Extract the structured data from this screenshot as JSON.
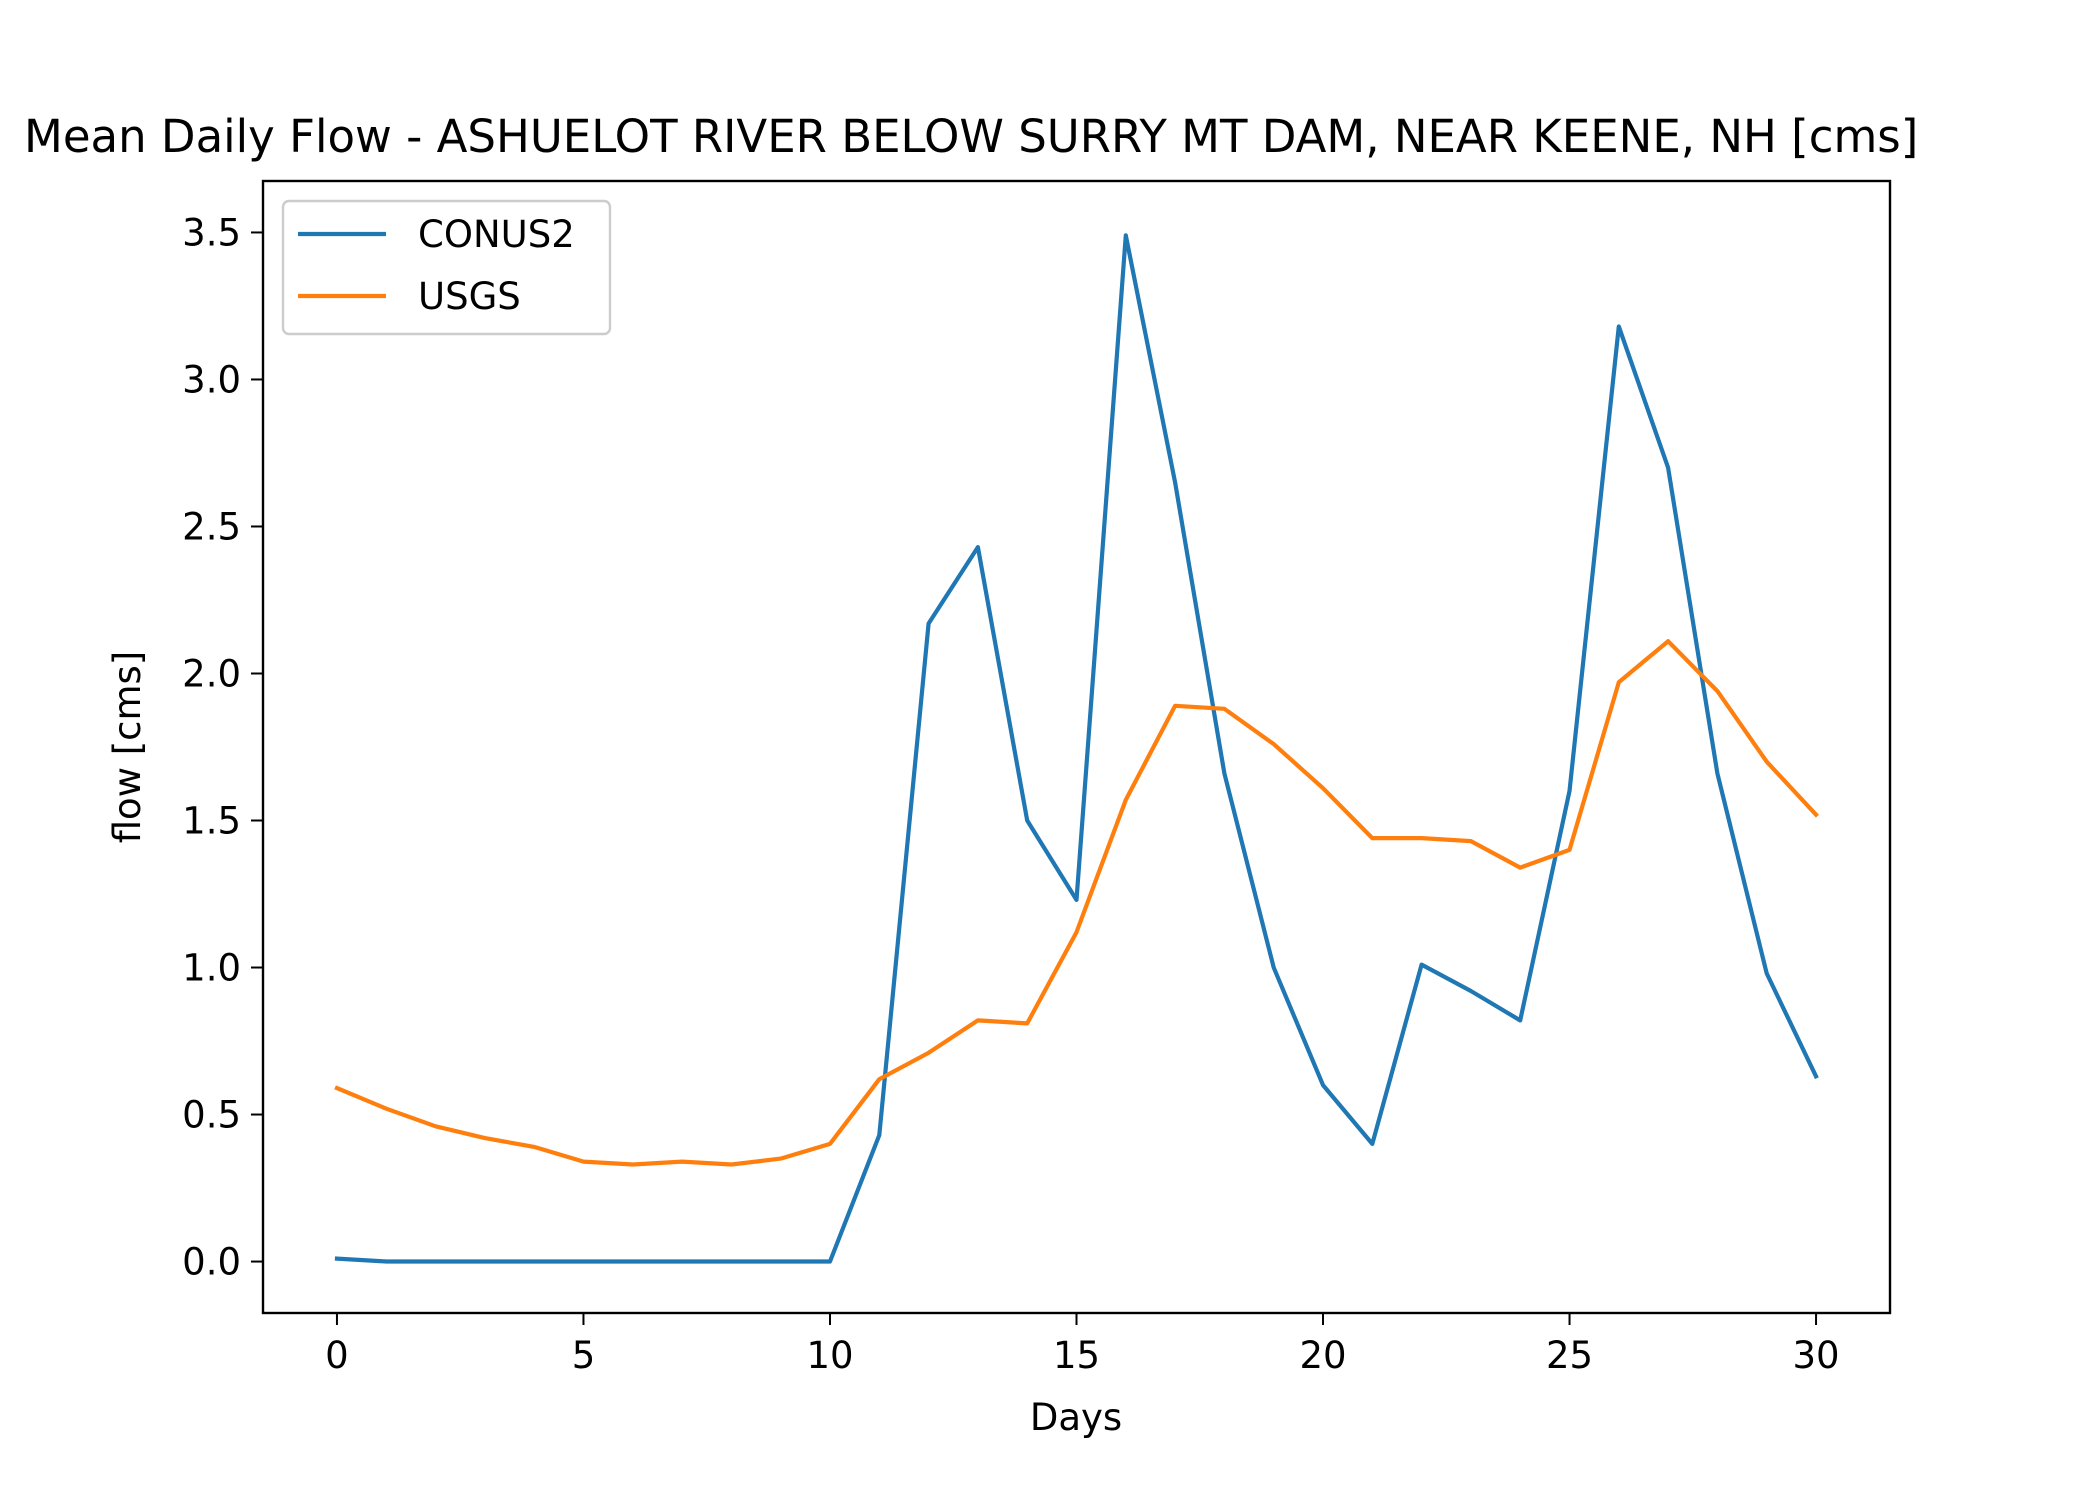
{
  "chart_data": {
    "type": "line",
    "title": "Mean Daily Flow - ASHUELOT RIVER BELOW SURRY MT DAM, NEAR KEENE, NH [cms]",
    "xlabel": "Days",
    "ylabel": "flow [cms]",
    "xlim": [
      -1.5,
      31.5
    ],
    "ylim": [
      -0.175,
      3.675
    ],
    "xticks": [
      0,
      5,
      10,
      15,
      20,
      25,
      30
    ],
    "yticks": [
      0.0,
      0.5,
      1.0,
      1.5,
      2.0,
      2.5,
      3.0,
      3.5
    ],
    "xtick_labels": [
      "0",
      "5",
      "10",
      "15",
      "20",
      "25",
      "30"
    ],
    "ytick_labels": [
      "0.0",
      "0.5",
      "1.0",
      "1.5",
      "2.0",
      "2.5",
      "3.0",
      "3.5"
    ],
    "grid": false,
    "legend_position": "upper-left",
    "x": [
      0,
      1,
      2,
      3,
      4,
      5,
      6,
      7,
      8,
      9,
      10,
      11,
      12,
      13,
      14,
      15,
      16,
      17,
      18,
      19,
      20,
      21,
      22,
      23,
      24,
      25,
      26,
      27,
      28,
      29,
      30
    ],
    "series": [
      {
        "name": "CONUS2",
        "color": "#1f77b4",
        "values": [
          0.01,
          0.0,
          0.0,
          0.0,
          0.0,
          0.0,
          0.0,
          0.0,
          0.0,
          0.0,
          0.0,
          0.43,
          2.17,
          2.43,
          1.5,
          1.23,
          3.49,
          2.65,
          1.66,
          1.0,
          0.6,
          0.4,
          1.01,
          0.92,
          0.82,
          1.6,
          3.18,
          2.7,
          1.66,
          0.98,
          0.63
        ]
      },
      {
        "name": "USGS",
        "color": "#ff7f0e",
        "values": [
          0.59,
          0.52,
          0.46,
          0.42,
          0.39,
          0.34,
          0.33,
          0.34,
          0.33,
          0.35,
          0.4,
          0.62,
          0.71,
          0.82,
          0.81,
          1.12,
          1.57,
          1.89,
          1.88,
          1.76,
          1.61,
          1.44,
          1.44,
          1.43,
          1.34,
          1.4,
          1.97,
          2.11,
          1.94,
          1.7,
          1.52
        ]
      }
    ]
  }
}
